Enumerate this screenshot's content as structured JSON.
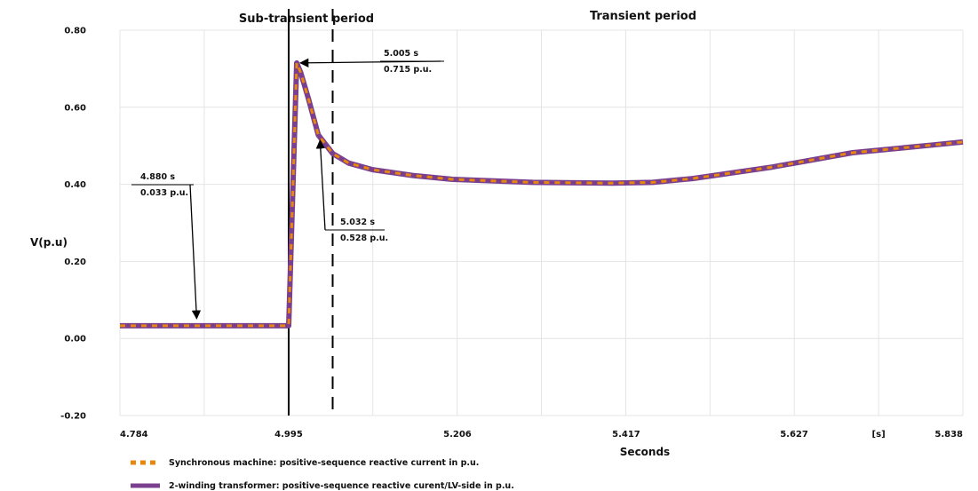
{
  "chart_data": {
    "type": "line",
    "title": "",
    "xlabel": "Seconds",
    "ylabel": "V(p.u)",
    "x_unit_label": "[s]",
    "xlim": [
      4.784,
      5.838
    ],
    "ylim": [
      -0.2,
      0.8
    ],
    "x_ticks": [
      "4.784",
      "4.995",
      "5.206",
      "5.417",
      "5.627",
      "[s]",
      "5.838"
    ],
    "y_ticks": [
      "0.80",
      "0.60",
      "0.40",
      "0.20",
      "0.00",
      "-0.20"
    ],
    "grid": true,
    "legend_position": "bottom-left",
    "colors": {
      "series1": "#e8870e",
      "series2": "#7b3f8f",
      "grid": "#e4e4e4"
    },
    "series": [
      {
        "name": "Synchronous machine: positive-sequence reactive current in p.u.",
        "style": "dashed",
        "x": [
          4.784,
          4.88,
          4.99,
          4.995,
          5.005,
          5.01,
          5.02,
          5.032,
          5.05,
          5.07,
          5.1,
          5.15,
          5.2,
          5.3,
          5.4,
          5.45,
          5.5,
          5.6,
          5.7,
          5.8,
          5.838
        ],
        "y": [
          0.033,
          0.033,
          0.033,
          0.033,
          0.715,
          0.69,
          0.62,
          0.528,
          0.48,
          0.455,
          0.438,
          0.423,
          0.413,
          0.405,
          0.403,
          0.405,
          0.415,
          0.445,
          0.482,
          0.502,
          0.51
        ]
      },
      {
        "name": "2-winding transformer: positive-sequence reactive curent/LV-side in p.u.",
        "style": "solid",
        "x": [
          4.784,
          4.88,
          4.99,
          4.995,
          5.005,
          5.01,
          5.02,
          5.032,
          5.05,
          5.07,
          5.1,
          5.15,
          5.2,
          5.3,
          5.4,
          5.45,
          5.5,
          5.6,
          5.7,
          5.8,
          5.838
        ],
        "y": [
          0.033,
          0.033,
          0.033,
          0.033,
          0.715,
          0.69,
          0.62,
          0.528,
          0.48,
          0.455,
          0.438,
          0.423,
          0.413,
          0.405,
          0.403,
          0.405,
          0.415,
          0.445,
          0.482,
          0.502,
          0.51
        ]
      }
    ],
    "vertical_lines": [
      {
        "x": 4.995,
        "style": "solid",
        "label": "Sub-transient period"
      },
      {
        "x": 5.05,
        "style": "dashed",
        "label": "Transient period"
      }
    ],
    "annotations": [
      {
        "time": "4.880 s",
        "value": "0.033 p.u.",
        "x": 4.88,
        "y": 0.033
      },
      {
        "time": "5.005 s",
        "value": "0.715 p.u.",
        "x": 5.005,
        "y": 0.715
      },
      {
        "time": "5.032 s",
        "value": "0.528 p.u.",
        "x": 5.032,
        "y": 0.528
      }
    ]
  }
}
